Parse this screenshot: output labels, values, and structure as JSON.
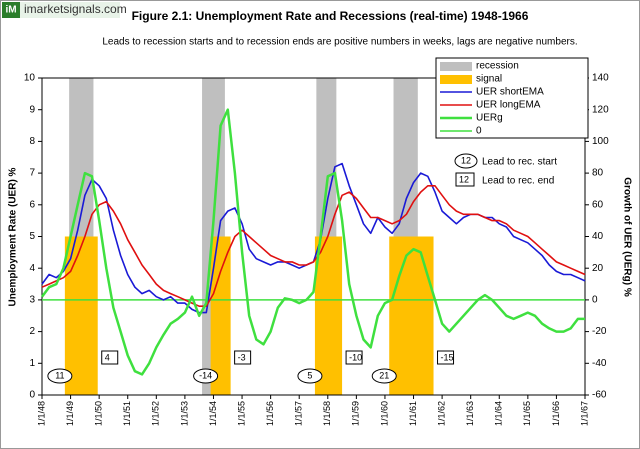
{
  "watermark": {
    "icon": "iM",
    "text": "imarketsignals.com"
  },
  "chart_data": {
    "type": "line",
    "title": "Figure 2.1:   Unemployment Rate and Recessions (real-time) 1948-1966",
    "subtitle": "Leads to recession starts and to recession ends are positive numbers in weeks, lags are negative numbers.",
    "y_label": "Unemployment Rate (UER) %",
    "y2_label": "Growth of UER (UERg) %",
    "xlim": [
      1948,
      1967
    ],
    "xticks": [
      {
        "value": 1948,
        "label": "1/1/48"
      },
      {
        "value": 1949,
        "label": "1/1/49"
      },
      {
        "value": 1950,
        "label": "1/1/50"
      },
      {
        "value": 1951,
        "label": "1/1/51"
      },
      {
        "value": 1952,
        "label": "1/1/52"
      },
      {
        "value": 1953,
        "label": "1/1/53"
      },
      {
        "value": 1954,
        "label": "1/1/54"
      },
      {
        "value": 1955,
        "label": "1/1/55"
      },
      {
        "value": 1956,
        "label": "1/1/56"
      },
      {
        "value": 1957,
        "label": "1/1/57"
      },
      {
        "value": 1958,
        "label": "1/1/58"
      },
      {
        "value": 1959,
        "label": "1/1/59"
      },
      {
        "value": 1960,
        "label": "1/1/60"
      },
      {
        "value": 1961,
        "label": "1/1/61"
      },
      {
        "value": 1962,
        "label": "1/1/62"
      },
      {
        "value": 1963,
        "label": "1/1/63"
      },
      {
        "value": 1964,
        "label": "1/1/64"
      },
      {
        "value": 1965,
        "label": "1/1/65"
      },
      {
        "value": 1966,
        "label": "1/1/66"
      },
      {
        "value": 1967,
        "label": "1/1/67"
      }
    ],
    "ylim": [
      0,
      10
    ],
    "yticks": [
      0,
      1,
      2,
      3,
      4,
      5,
      6,
      7,
      8,
      9,
      10
    ],
    "y2lim": [
      -60,
      140
    ],
    "y2ticks": [
      -60,
      -40,
      -20,
      0,
      20,
      40,
      60,
      80,
      100,
      120,
      140
    ],
    "recessions": {
      "name": "recession",
      "color": "#bfbfbf",
      "spans": [
        {
          "start": 1948.95,
          "end": 1949.8
        },
        {
          "start": 1953.6,
          "end": 1954.4
        },
        {
          "start": 1957.6,
          "end": 1958.3
        },
        {
          "start": 1960.3,
          "end": 1961.15
        }
      ]
    },
    "signals": {
      "name": "signal",
      "color": "#ffc000",
      "height": 5,
      "spans": [
        {
          "start": 1948.8,
          "end": 1949.95
        },
        {
          "start": 1953.9,
          "end": 1954.6
        },
        {
          "start": 1957.55,
          "end": 1958.5
        },
        {
          "start": 1960.15,
          "end": 1961.7
        }
      ]
    },
    "x": [
      1948,
      1948.25,
      1948.5,
      1948.75,
      1949,
      1949.25,
      1949.5,
      1949.75,
      1950,
      1950.25,
      1950.5,
      1950.75,
      1951,
      1951.25,
      1951.5,
      1951.75,
      1952,
      1952.25,
      1952.5,
      1952.75,
      1953,
      1953.25,
      1953.5,
      1953.75,
      1954,
      1954.25,
      1954.5,
      1954.75,
      1955,
      1955.25,
      1955.5,
      1955.75,
      1956,
      1956.25,
      1956.5,
      1956.75,
      1957,
      1957.25,
      1957.5,
      1957.75,
      1958,
      1958.25,
      1958.5,
      1958.75,
      1959,
      1959.25,
      1959.5,
      1959.75,
      1960,
      1960.25,
      1960.5,
      1960.75,
      1961,
      1961.25,
      1961.5,
      1961.75,
      1962,
      1962.25,
      1962.5,
      1962.75,
      1963,
      1963.25,
      1963.5,
      1963.75,
      1964,
      1964.25,
      1964.5,
      1964.75,
      1965,
      1965.25,
      1965.5,
      1965.75,
      1966,
      1966.25,
      1966.5,
      1966.75,
      1967
    ],
    "series": [
      {
        "name": "UER shortEMA",
        "color": "#1a1ad6",
        "values": [
          3.5,
          3.8,
          3.7,
          3.9,
          4.3,
          5.2,
          6.3,
          6.8,
          6.6,
          6.2,
          5.2,
          4.4,
          3.8,
          3.4,
          3.2,
          3.3,
          3.1,
          3.0,
          3.1,
          2.9,
          2.9,
          2.7,
          2.6,
          2.6,
          4.0,
          5.5,
          5.8,
          5.9,
          5.4,
          4.6,
          4.3,
          4.2,
          4.1,
          4.2,
          4.2,
          4.1,
          4.0,
          4.1,
          4.2,
          4.9,
          6.2,
          7.2,
          7.3,
          6.6,
          6.0,
          5.4,
          5.1,
          5.6,
          5.3,
          5.1,
          5.4,
          6.2,
          6.7,
          7.0,
          6.9,
          6.4,
          5.8,
          5.6,
          5.4,
          5.6,
          5.7,
          5.7,
          5.6,
          5.6,
          5.4,
          5.3,
          5.0,
          4.9,
          4.8,
          4.6,
          4.4,
          4.1,
          3.9,
          3.8,
          3.8,
          3.7,
          3.6
        ]
      },
      {
        "name": "UER longEMA",
        "color": "#e01010",
        "values": [
          3.4,
          3.5,
          3.6,
          3.7,
          3.9,
          4.4,
          5.0,
          5.7,
          6.0,
          6.1,
          5.8,
          5.4,
          4.9,
          4.5,
          4.1,
          3.8,
          3.5,
          3.3,
          3.2,
          3.1,
          3.0,
          2.9,
          2.8,
          2.8,
          3.2,
          3.9,
          4.5,
          5.0,
          5.2,
          5.0,
          4.8,
          4.6,
          4.4,
          4.3,
          4.2,
          4.2,
          4.1,
          4.1,
          4.2,
          4.5,
          5.0,
          5.7,
          6.3,
          6.4,
          6.2,
          5.9,
          5.6,
          5.6,
          5.5,
          5.4,
          5.5,
          5.7,
          6.1,
          6.4,
          6.6,
          6.6,
          6.3,
          6.0,
          5.8,
          5.7,
          5.7,
          5.7,
          5.6,
          5.5,
          5.5,
          5.4,
          5.2,
          5.1,
          5.0,
          4.8,
          4.6,
          4.4,
          4.2,
          4.1,
          4.0,
          3.9,
          3.8
        ]
      },
      {
        "name": "UERg",
        "color": "#3fe03f",
        "axis": "y2",
        "values": [
          2,
          8,
          10,
          20,
          40,
          60,
          80,
          78,
          50,
          20,
          -5,
          -20,
          -35,
          -45,
          -47,
          -40,
          -30,
          -22,
          -15,
          -12,
          -8,
          2,
          -10,
          -2,
          50,
          110,
          120,
          80,
          30,
          -10,
          -25,
          -28,
          -20,
          -5,
          1,
          0,
          -2,
          0,
          5,
          40,
          78,
          80,
          50,
          10,
          -10,
          -25,
          -30,
          -10,
          -2,
          0,
          15,
          28,
          32,
          30,
          15,
          0,
          -15,
          -20,
          -15,
          -10,
          -5,
          0,
          3,
          0,
          -5,
          -10,
          -12,
          -10,
          -8,
          -10,
          -15,
          -18,
          -20,
          -20,
          -18,
          -12,
          -12
        ]
      }
    ],
    "reference_line": {
      "name": "0",
      "color": "#3fe03f",
      "axis": "y2",
      "value": 0
    },
    "annotations": {
      "start_leads": {
        "name": "Lead to rec. start",
        "sample": 12,
        "values": [
          11,
          -14,
          5,
          21
        ]
      },
      "end_leads": {
        "name": "Lead to rec. end",
        "sample": 12,
        "values": [
          4,
          -3,
          -10,
          -15
        ]
      }
    }
  }
}
